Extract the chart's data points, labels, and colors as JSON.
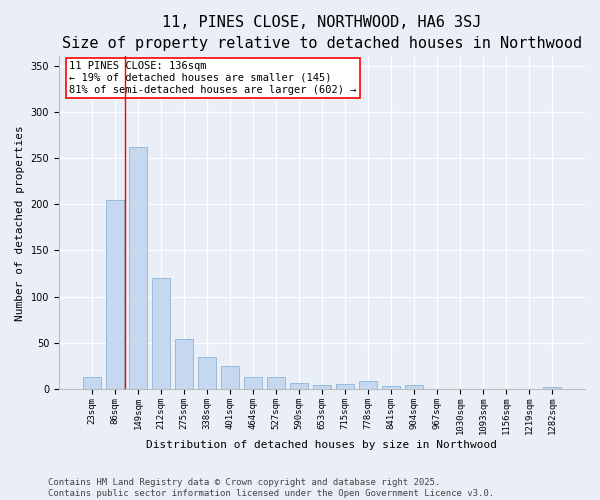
{
  "title": "11, PINES CLOSE, NORTHWOOD, HA6 3SJ",
  "subtitle": "Size of property relative to detached houses in Northwood",
  "xlabel": "Distribution of detached houses by size in Northwood",
  "ylabel": "Number of detached properties",
  "categories": [
    "23sqm",
    "86sqm",
    "149sqm",
    "212sqm",
    "275sqm",
    "338sqm",
    "401sqm",
    "464sqm",
    "527sqm",
    "590sqm",
    "653sqm",
    "715sqm",
    "778sqm",
    "841sqm",
    "904sqm",
    "967sqm",
    "1030sqm",
    "1093sqm",
    "1156sqm",
    "1219sqm",
    "1282sqm"
  ],
  "values": [
    13,
    205,
    262,
    120,
    54,
    35,
    25,
    13,
    13,
    7,
    5,
    6,
    9,
    3,
    4,
    0,
    0,
    0,
    0,
    0,
    2
  ],
  "bar_color": "#c5d8f0",
  "bar_edge_color": "#7aadd4",
  "annotation_title": "11 PINES CLOSE: 136sqm",
  "annotation_line1": "← 19% of detached houses are smaller (145)",
  "annotation_line2": "81% of semi-detached houses are larger (602) →",
  "background_color": "#eaeff7",
  "plot_bg_color": "#eaeff7",
  "footer_line1": "Contains HM Land Registry data © Crown copyright and database right 2025.",
  "footer_line2": "Contains public sector information licensed under the Open Government Licence v3.0.",
  "ylim": [
    0,
    360
  ],
  "red_line_x": 1.45,
  "title_fontsize": 11,
  "subtitle_fontsize": 9.5,
  "axis_label_fontsize": 8,
  "tick_fontsize": 6.5,
  "annotation_fontsize": 7.5,
  "footer_fontsize": 6.5
}
